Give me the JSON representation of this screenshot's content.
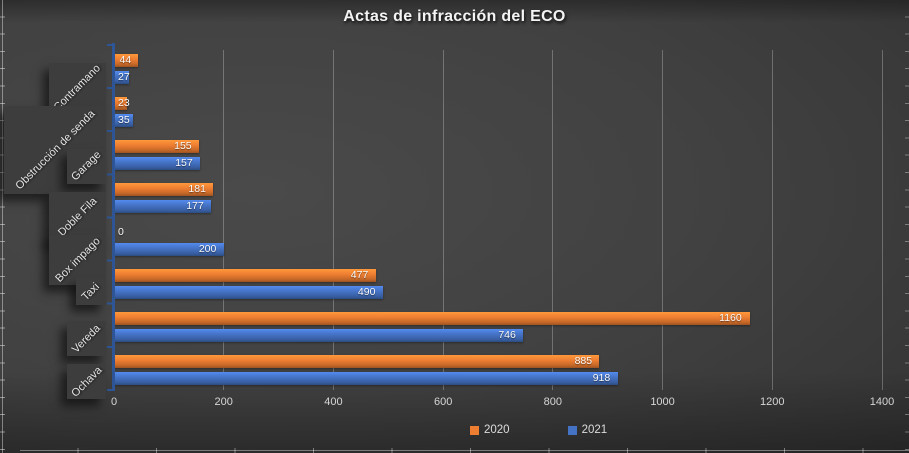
{
  "chart_data": {
    "type": "bar",
    "orientation": "horizontal",
    "title": "Actas de infracción del ECO",
    "categories": [
      "Contramano",
      "Obstrucción de senda",
      "Garage",
      "Doble Fila",
      "Box impago",
      "Taxi",
      "Vereda",
      "Ochava"
    ],
    "series": [
      {
        "name": "2020",
        "color": "#ED7D31",
        "values": [
          44,
          23,
          155,
          181,
          0,
          477,
          1160,
          885
        ]
      },
      {
        "name": "2021",
        "color": "#4472C4",
        "values": [
          27,
          35,
          157,
          177,
          200,
          490,
          746,
          918
        ]
      }
    ],
    "xlim": [
      0,
      1400
    ],
    "x_ticks": [
      0,
      200,
      400,
      600,
      800,
      1000,
      1200,
      1400
    ],
    "grid": "vertical-major",
    "legend_position": "bottom",
    "data_labels": "inside-end",
    "axis_color": "#2E5596"
  }
}
